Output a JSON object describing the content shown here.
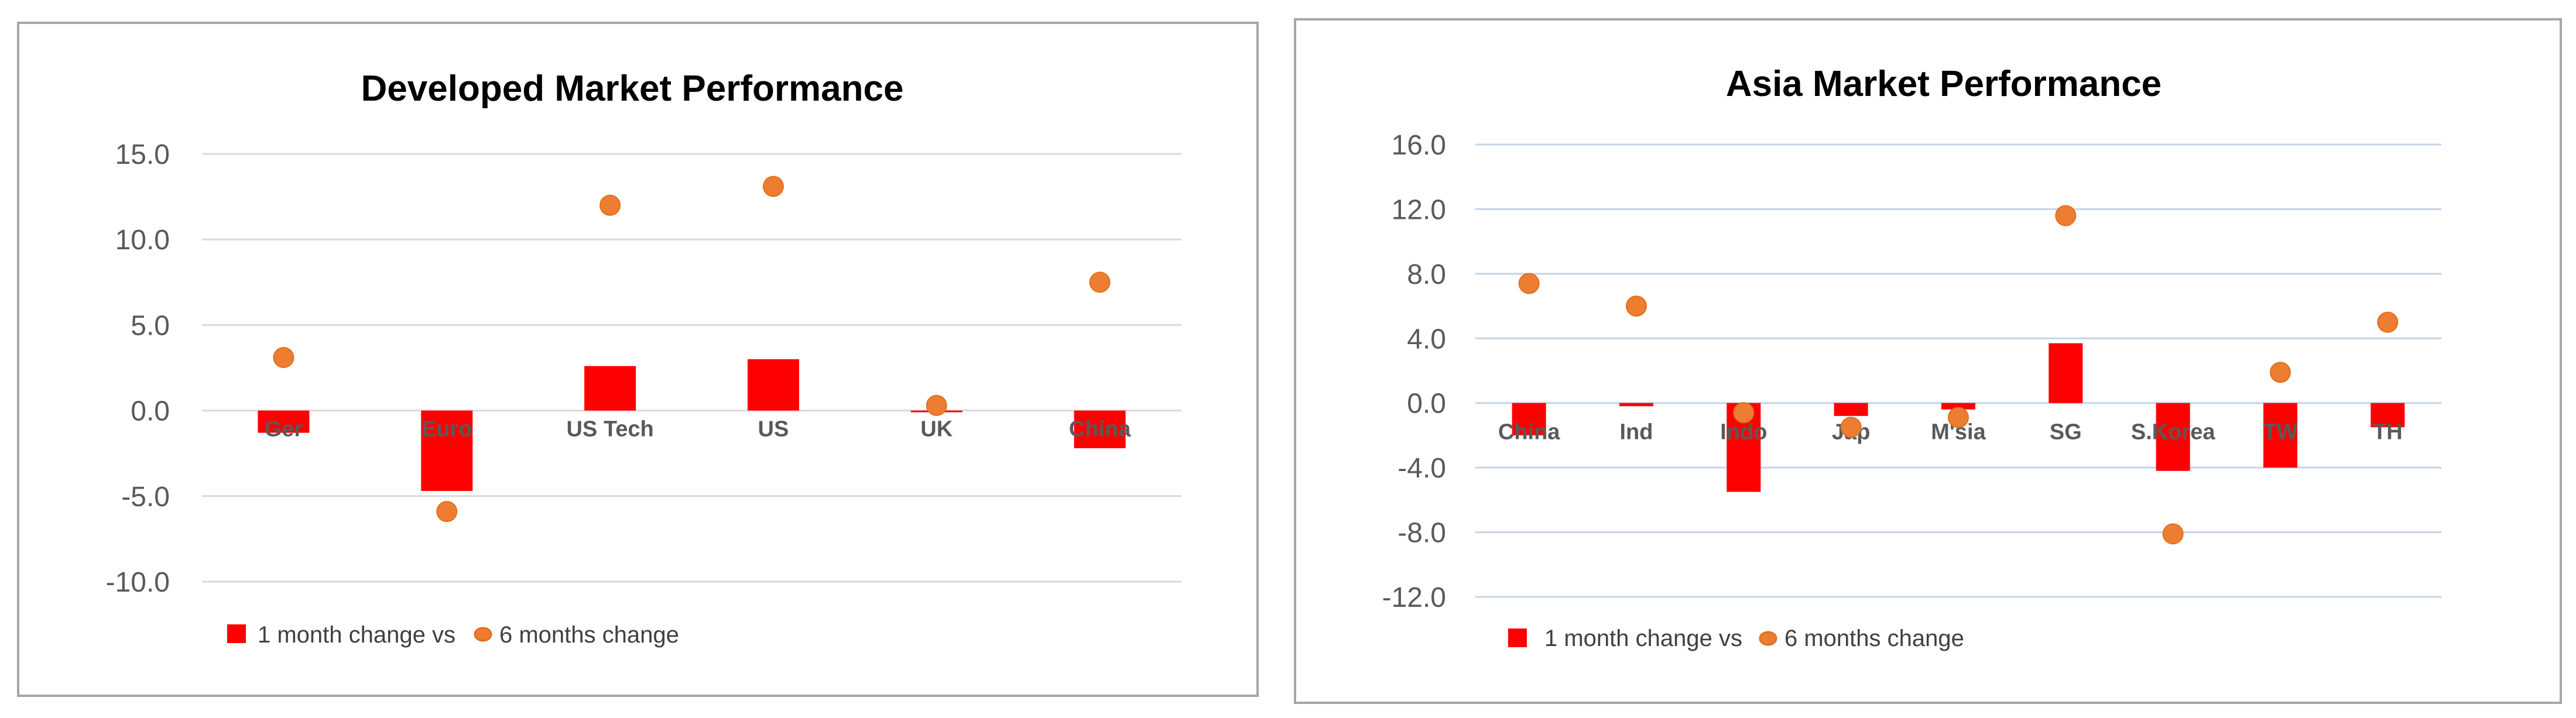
{
  "colors": {
    "bar": "#ff0000",
    "marker": "#ed7d31",
    "marker_edge": "#e07020",
    "grid": "#d9d9d9",
    "grid_asia": "#c5d3e8",
    "frame": "#a6a6a6"
  },
  "chart_data": [
    {
      "type": "bar",
      "title": "Developed Market Performance",
      "xlabel": "",
      "ylabel": "",
      "categories": [
        "Ger",
        "Euro",
        "US Tech",
        "US",
        "UK",
        "China"
      ],
      "series": [
        {
          "name": "1 month change vs",
          "type": "bar",
          "values": [
            -1.3,
            -4.7,
            2.6,
            3.0,
            -0.1,
            -2.2
          ]
        },
        {
          "name": "6 months change",
          "type": "scatter",
          "values": [
            3.1,
            -5.9,
            12.0,
            13.1,
            0.3,
            7.5
          ]
        }
      ],
      "ylim": [
        -10,
        15
      ],
      "yticks": [
        -10,
        -5,
        0,
        5,
        10,
        15
      ],
      "ytick_labels": [
        "-10.0",
        "-5.0",
        "0.0",
        "5.0",
        "10.0",
        "15.0"
      ],
      "grid": true,
      "legend": "bottom-left"
    },
    {
      "type": "bar",
      "title": "Asia Market Performance",
      "xlabel": "",
      "ylabel": "",
      "categories": [
        "China",
        "Ind",
        "Indo",
        "Jap",
        "M'sia",
        "SG",
        "S.Korea",
        "TW",
        "TH"
      ],
      "series": [
        {
          "name": "1 month change vs",
          "type": "bar",
          "values": [
            -2.0,
            -0.2,
            -5.5,
            -0.8,
            -0.4,
            3.7,
            -4.2,
            -4.0,
            -1.5
          ]
        },
        {
          "name": "6 months change",
          "type": "scatter",
          "values": [
            7.4,
            6.0,
            -0.6,
            -1.5,
            -0.9,
            11.6,
            -8.1,
            1.9,
            5.0
          ]
        }
      ],
      "ylim": [
        -12,
        16
      ],
      "yticks": [
        -12,
        -8,
        -4,
        0,
        4,
        8,
        12,
        16
      ],
      "ytick_labels": [
        "-12.0",
        "-8.0",
        "-4.0",
        "0.0",
        "4.0",
        "8.0",
        "12.0",
        "16.0"
      ],
      "grid": true,
      "legend": "bottom-left"
    }
  ]
}
